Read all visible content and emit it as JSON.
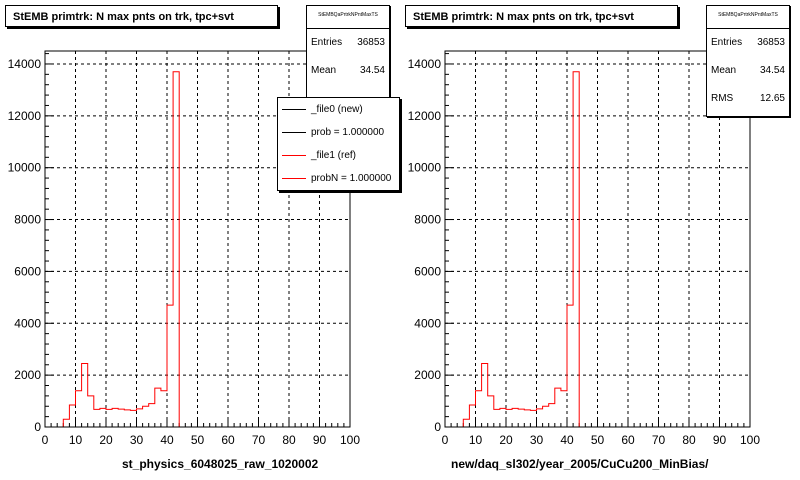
{
  "chart_data": [
    {
      "type": "line",
      "title": "StEMB primtrk: N max pnts on trk, tpc+svt",
      "xlabel": "st_physics_6048025_raw_1020002",
      "ylabel": "",
      "xlim": [
        0,
        100
      ],
      "ylim": [
        0,
        14500
      ],
      "x_ticks": [
        0,
        10,
        20,
        30,
        40,
        50,
        60,
        70,
        80,
        90,
        100
      ],
      "y_ticks": [
        0,
        2000,
        4000,
        6000,
        8000,
        10000,
        12000,
        14000
      ],
      "grid": true,
      "bin_width": 2,
      "stats": {
        "name": "StEMBQaPrtrkNPntMaxTS",
        "rows": [
          {
            "label": "Entries",
            "value": "36853"
          },
          {
            "label": "Mean",
            "value": "34.54"
          }
        ]
      },
      "legend": {
        "position": "top-right",
        "entries": [
          {
            "label": "_file0 (new)",
            "color": "#000000"
          },
          {
            "label": "prob = 1.000000",
            "color": "#000000"
          },
          {
            "label": "_file1 (ref)",
            "color": "#ff0000"
          },
          {
            "label": "probN = 1.000000",
            "color": "#ff0000"
          }
        ]
      },
      "series": [
        {
          "name": "_file1 (ref)",
          "color": "#ff0000",
          "x": [
            6,
            8,
            10,
            12,
            14,
            16,
            18,
            20,
            22,
            24,
            26,
            28,
            30,
            32,
            34,
            36,
            38,
            40,
            42,
            44
          ],
          "values": [
            300,
            850,
            1400,
            2450,
            1200,
            680,
            720,
            680,
            720,
            690,
            660,
            640,
            700,
            800,
            900,
            1500,
            1400,
            4700,
            13700,
            0
          ]
        }
      ]
    },
    {
      "type": "line",
      "title": "StEMB primtrk: N max pnts on trk, tpc+svt",
      "xlabel": "new/daq_sl302/year_2005/CuCu200_MinBias/",
      "ylabel": "",
      "xlim": [
        0,
        100
      ],
      "ylim": [
        0,
        14500
      ],
      "x_ticks": [
        0,
        10,
        20,
        30,
        40,
        50,
        60,
        70,
        80,
        90,
        100
      ],
      "y_ticks": [
        0,
        2000,
        4000,
        6000,
        8000,
        10000,
        12000,
        14000
      ],
      "grid": true,
      "bin_width": 2,
      "stats": {
        "name": "StEMBQaPrtrkNPntMaxTS",
        "rows": [
          {
            "label": "Entries",
            "value": "36853"
          },
          {
            "label": "Mean",
            "value": "34.54"
          },
          {
            "label": "RMS",
            "value": "12.65"
          }
        ]
      },
      "series": [
        {
          "color": "#ff0000",
          "x": [
            6,
            8,
            10,
            12,
            14,
            16,
            18,
            20,
            22,
            24,
            26,
            28,
            30,
            32,
            34,
            36,
            38,
            40,
            42,
            44
          ],
          "values": [
            300,
            850,
            1400,
            2450,
            1200,
            680,
            720,
            680,
            720,
            690,
            660,
            640,
            700,
            800,
            900,
            1500,
            1400,
            4700,
            13700,
            0
          ]
        }
      ]
    }
  ]
}
